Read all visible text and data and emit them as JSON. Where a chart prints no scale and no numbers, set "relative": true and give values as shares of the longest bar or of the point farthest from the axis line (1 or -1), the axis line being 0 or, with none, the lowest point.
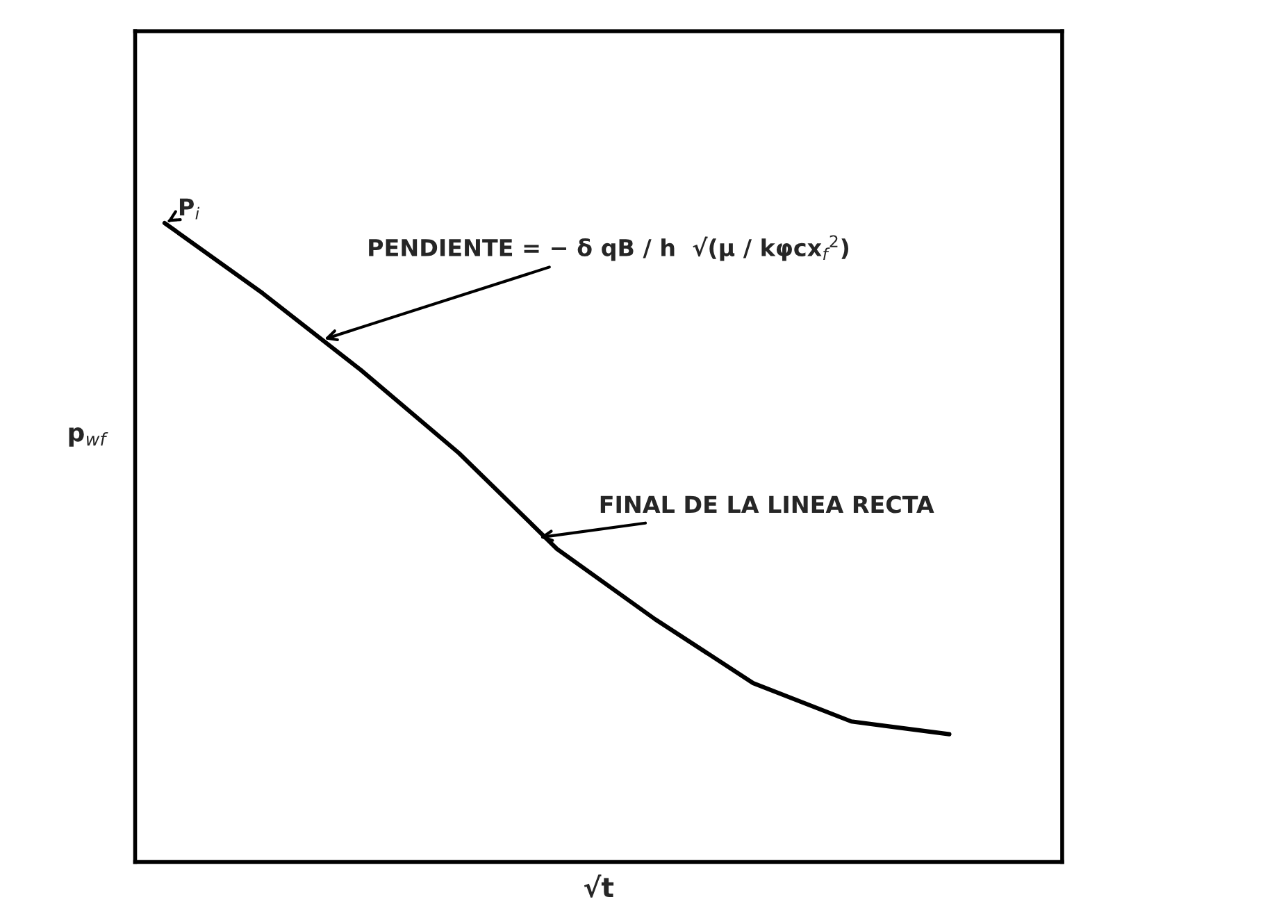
{
  "chart_data": {
    "type": "line",
    "relative": true,
    "xlabel": "√t",
    "ylabel": "p$_{wf}$",
    "categories": [
      null,
      null,
      null,
      null,
      null,
      null,
      null,
      null,
      null
    ],
    "series": [
      {
        "color": "#000000",
        "values": [
          1.0,
          0.89,
          0.77,
          0.64,
          0.49,
          0.38,
          0.28,
          0.22,
          0.2
        ]
      }
    ],
    "annotations": [
      "P$_{i}$",
      "PENDIENTE = − δ qB / h  √(μ / kφcx$_{f}$$^{2}$)",
      "FINAL DE LA LINEA RECTA"
    ],
    "grid": false,
    "legend": false,
    "marker": "none",
    "line_style": "solid"
  }
}
